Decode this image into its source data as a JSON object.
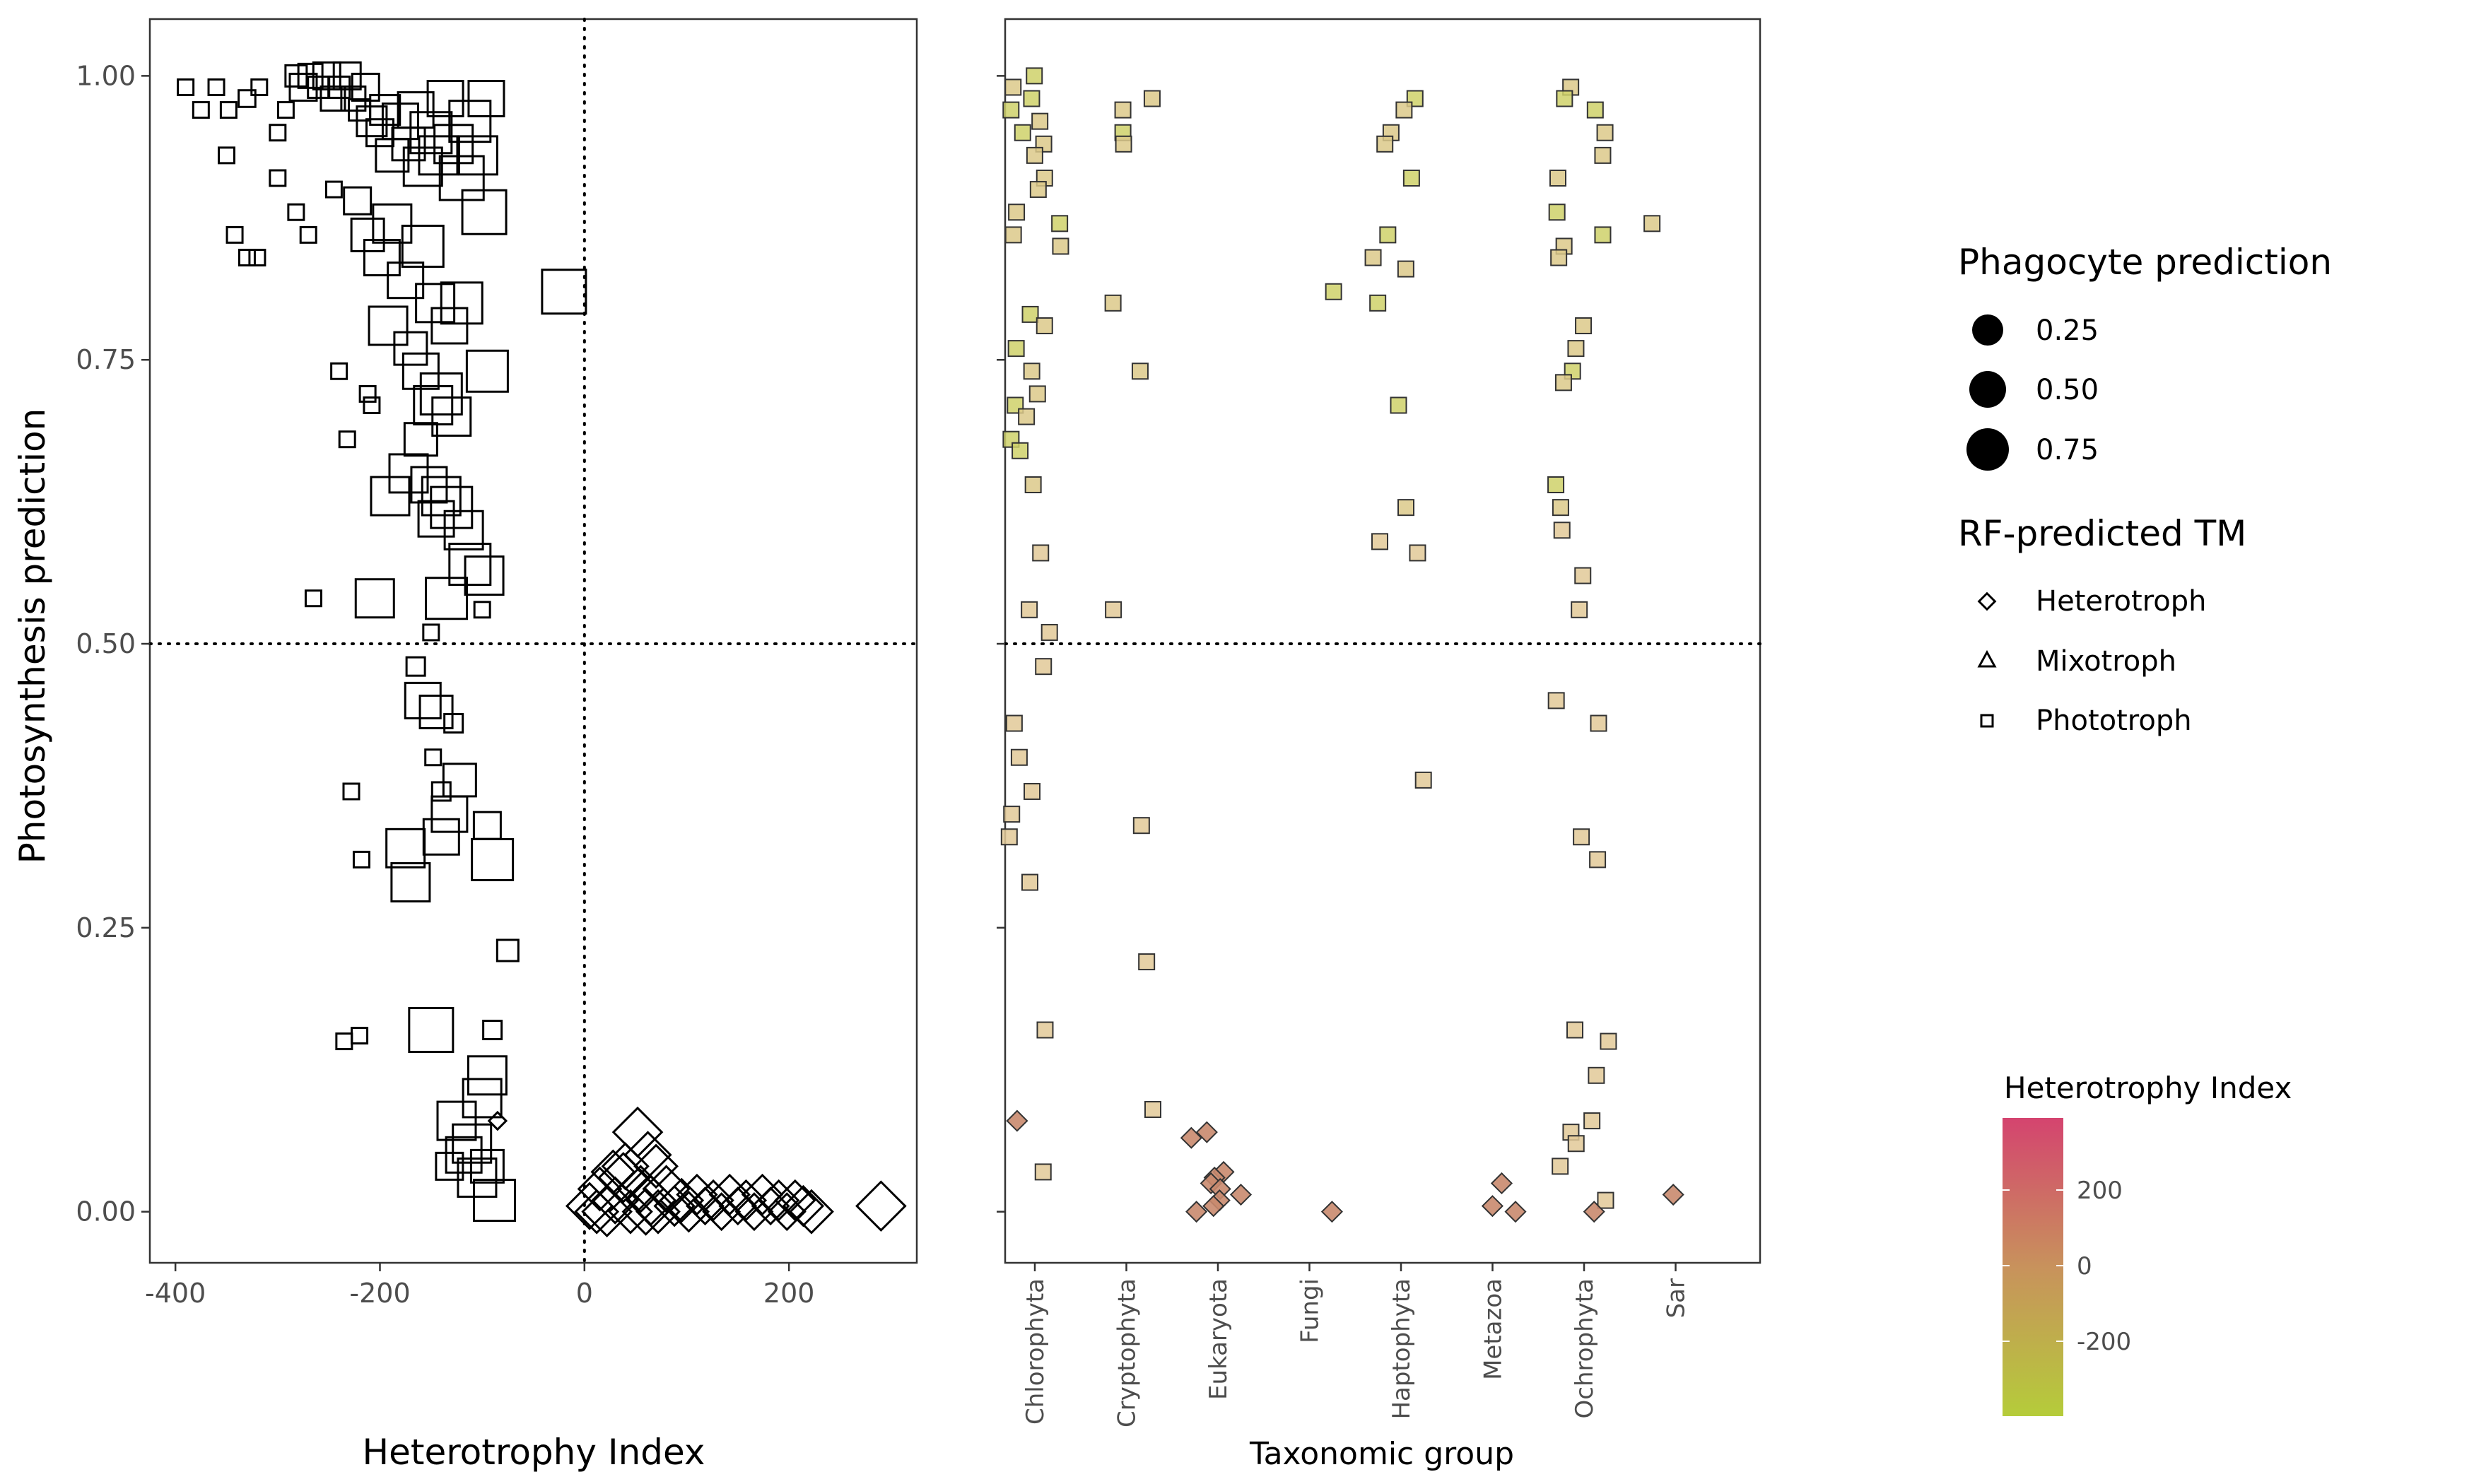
{
  "chart_data": [
    {
      "type": "scatter",
      "xlabel": "Heterotrophy Index",
      "ylabel": "Photosynthesis prediction",
      "xlim": [
        -425,
        325
      ],
      "ylim": [
        -0.045,
        1.05
      ],
      "xticks": [
        -400,
        -200,
        0,
        200
      ],
      "yticks": [
        0.0,
        0.25,
        0.5,
        0.75,
        1.0
      ],
      "ytick_labels": [
        "0.00",
        "0.25",
        "0.50",
        "0.75",
        "1.00"
      ],
      "reference_lines": {
        "x": 0,
        "y": 0.5,
        "style": "dotted"
      },
      "grid": false,
      "phototroph_points": [
        [
          -390,
          0.99,
          0.1
        ],
        [
          -375,
          0.97,
          0.1
        ],
        [
          -360,
          0.99,
          0.1
        ],
        [
          -348,
          0.97,
          0.1
        ],
        [
          -330,
          0.98,
          0.12
        ],
        [
          -318,
          0.99,
          0.1
        ],
        [
          -300,
          0.95,
          0.1
        ],
        [
          -292,
          0.97,
          0.1
        ],
        [
          -282,
          1.0,
          0.2
        ],
        [
          -275,
          0.99,
          0.3
        ],
        [
          -268,
          1.0,
          0.25
        ],
        [
          -260,
          0.99,
          0.2
        ],
        [
          -252,
          1.0,
          0.3
        ],
        [
          -246,
          0.98,
          0.25
        ],
        [
          -240,
          0.99,
          0.2
        ],
        [
          -232,
          1.0,
          0.3
        ],
        [
          -226,
          0.98,
          0.25
        ],
        [
          -220,
          0.97,
          0.2
        ],
        [
          -214,
          0.99,
          0.3
        ],
        [
          -208,
          0.96,
          0.35
        ],
        [
          -200,
          0.95,
          0.3
        ],
        [
          -195,
          0.97,
          0.35
        ],
        [
          -188,
          0.93,
          0.4
        ],
        [
          -180,
          0.96,
          0.45
        ],
        [
          -172,
          0.94,
          0.4
        ],
        [
          -165,
          0.97,
          0.45
        ],
        [
          -158,
          0.92,
          0.5
        ],
        [
          -150,
          0.95,
          0.55
        ],
        [
          -143,
          0.93,
          0.5
        ],
        [
          -136,
          0.98,
          0.45
        ],
        [
          -128,
          0.94,
          0.5
        ],
        [
          -120,
          0.91,
          0.6
        ],
        [
          -112,
          0.96,
          0.55
        ],
        [
          -104,
          0.93,
          0.5
        ],
        [
          -96,
          0.98,
          0.45
        ],
        [
          -350,
          0.93,
          0.1
        ],
        [
          -342,
          0.86,
          0.1
        ],
        [
          -330,
          0.84,
          0.1
        ],
        [
          -320,
          0.84,
          0.1
        ],
        [
          -300,
          0.91,
          0.1
        ],
        [
          -282,
          0.88,
          0.1
        ],
        [
          -270,
          0.86,
          0.1
        ],
        [
          -245,
          0.9,
          0.1
        ],
        [
          -222,
          0.89,
          0.3
        ],
        [
          -212,
          0.86,
          0.4
        ],
        [
          -198,
          0.84,
          0.45
        ],
        [
          -188,
          0.87,
          0.5
        ],
        [
          -175,
          0.82,
          0.45
        ],
        [
          -158,
          0.85,
          0.55
        ],
        [
          -146,
          0.8,
          0.5
        ],
        [
          -132,
          0.78,
          0.45
        ],
        [
          -120,
          0.8,
          0.55
        ],
        [
          -98,
          0.88,
          0.6
        ],
        [
          -20,
          0.81,
          0.6
        ],
        [
          -192,
          0.78,
          0.5
        ],
        [
          -170,
          0.76,
          0.4
        ],
        [
          -160,
          0.74,
          0.45
        ],
        [
          -148,
          0.71,
          0.5
        ],
        [
          -140,
          0.72,
          0.55
        ],
        [
          -130,
          0.7,
          0.5
        ],
        [
          -95,
          0.74,
          0.55
        ],
        [
          -240,
          0.74,
          0.1
        ],
        [
          -212,
          0.72,
          0.1
        ],
        [
          -208,
          0.71,
          0.1
        ],
        [
          -232,
          0.68,
          0.1
        ],
        [
          -160,
          0.68,
          0.4
        ],
        [
          -172,
          0.65,
          0.5
        ],
        [
          -152,
          0.64,
          0.45
        ],
        [
          -140,
          0.63,
          0.5
        ],
        [
          -130,
          0.62,
          0.55
        ],
        [
          -190,
          0.63,
          0.5
        ],
        [
          -145,
          0.61,
          0.45
        ],
        [
          -118,
          0.6,
          0.5
        ],
        [
          -112,
          0.57,
          0.55
        ],
        [
          -98,
          0.56,
          0.5
        ],
        [
          -205,
          0.54,
          0.5
        ],
        [
          -135,
          0.54,
          0.55
        ],
        [
          -100,
          0.53,
          0.1
        ],
        [
          -265,
          0.54,
          0.1
        ],
        [
          -150,
          0.51,
          0.1
        ],
        [
          -165,
          0.48,
          0.15
        ],
        [
          -158,
          0.45,
          0.45
        ],
        [
          -145,
          0.44,
          0.4
        ],
        [
          -128,
          0.43,
          0.15
        ],
        [
          -148,
          0.4,
          0.1
        ],
        [
          -140,
          0.37,
          0.15
        ],
        [
          -122,
          0.38,
          0.4
        ],
        [
          -132,
          0.35,
          0.45
        ],
        [
          -228,
          0.37,
          0.1
        ],
        [
          -218,
          0.31,
          0.1
        ],
        [
          -175,
          0.32,
          0.5
        ],
        [
          -140,
          0.33,
          0.45
        ],
        [
          -95,
          0.34,
          0.3
        ],
        [
          -90,
          0.31,
          0.55
        ],
        [
          -170,
          0.29,
          0.5
        ],
        [
          -75,
          0.23,
          0.2
        ],
        [
          -150,
          0.16,
          0.6
        ],
        [
          -90,
          0.16,
          0.15
        ],
        [
          -235,
          0.15,
          0.1
        ],
        [
          -220,
          0.155,
          0.1
        ],
        [
          -95,
          0.12,
          0.5
        ],
        [
          -100,
          0.1,
          0.5
        ],
        [
          -125,
          0.08,
          0.5
        ],
        [
          -110,
          0.06,
          0.5
        ],
        [
          -132,
          0.04,
          0.3
        ],
        [
          -118,
          0.05,
          0.45
        ],
        [
          -105,
          0.03,
          0.5
        ],
        [
          -95,
          0.04,
          0.4
        ],
        [
          -88,
          0.01,
          0.55
        ]
      ],
      "heterotroph_points": [
        [
          -85,
          0.08,
          0.1
        ],
        [
          52,
          0.07,
          0.6
        ],
        [
          62,
          0.05,
          0.55
        ],
        [
          5,
          0.005,
          0.55
        ],
        [
          15,
          0.02,
          0.5
        ],
        [
          22,
          0.0,
          0.6
        ],
        [
          30,
          0.01,
          0.55
        ],
        [
          38,
          0.03,
          0.6
        ],
        [
          45,
          0.0,
          0.5
        ],
        [
          55,
          0.02,
          0.55
        ],
        [
          65,
          0.01,
          0.6
        ],
        [
          72,
          0.0,
          0.5
        ],
        [
          80,
          0.02,
          0.55
        ],
        [
          88,
          0.005,
          0.45
        ],
        [
          95,
          0.01,
          0.5
        ],
        [
          102,
          0.0,
          0.45
        ],
        [
          110,
          0.015,
          0.45
        ],
        [
          118,
          0.005,
          0.4
        ],
        [
          126,
          0.01,
          0.45
        ],
        [
          134,
          0.0,
          0.4
        ],
        [
          142,
          0.015,
          0.45
        ],
        [
          150,
          0.005,
          0.4
        ],
        [
          158,
          0.01,
          0.45
        ],
        [
          166,
          0.0,
          0.4
        ],
        [
          174,
          0.015,
          0.45
        ],
        [
          182,
          0.005,
          0.4
        ],
        [
          190,
          0.01,
          0.45
        ],
        [
          198,
          0.0,
          0.4
        ],
        [
          206,
          0.01,
          0.45
        ],
        [
          214,
          0.005,
          0.45
        ],
        [
          222,
          0.0,
          0.5
        ],
        [
          290,
          0.005,
          0.6
        ],
        [
          40,
          0.04,
          0.55
        ],
        [
          28,
          0.035,
          0.5
        ],
        [
          70,
          0.04,
          0.5
        ],
        [
          12,
          0.0,
          0.5
        ],
        [
          60,
          0.0,
          0.55
        ]
      ]
    },
    {
      "type": "scatter",
      "xlabel": "Taxonomic group",
      "ylabel": "Photosynthesis prediction",
      "categories": [
        "Chlorophyta",
        "Cryptophyta",
        "Eukaryota",
        "Fungi",
        "Haptophyta",
        "Metazoa",
        "Ochrophyta",
        "Sar"
      ],
      "ylim": [
        -0.045,
        1.05
      ],
      "reference_lines": {
        "y": 0.5,
        "style": "dotted"
      },
      "color_scale": {
        "low": "#b5cc3a",
        "mid": "#c8925c",
        "high": "#d4446f"
      },
      "phototroph_points": [
        [
          0,
          1.0
        ],
        [
          0,
          0.99
        ],
        [
          0,
          0.98
        ],
        [
          0,
          0.97
        ],
        [
          0,
          0.96
        ],
        [
          0,
          0.95
        ],
        [
          0,
          0.94
        ],
        [
          0,
          0.93
        ],
        [
          0,
          0.91
        ],
        [
          0,
          0.9
        ],
        [
          0,
          0.88
        ],
        [
          0,
          0.87
        ],
        [
          0,
          0.86
        ],
        [
          0,
          0.85
        ],
        [
          0,
          0.79
        ],
        [
          0,
          0.78
        ],
        [
          0,
          0.76
        ],
        [
          0,
          0.74
        ],
        [
          0,
          0.72
        ],
        [
          0,
          0.71
        ],
        [
          0,
          0.7
        ],
        [
          0,
          0.68
        ],
        [
          0,
          0.67
        ],
        [
          0,
          0.64
        ],
        [
          0,
          0.58
        ],
        [
          0,
          0.53
        ],
        [
          0,
          0.51
        ],
        [
          0,
          0.48
        ],
        [
          0,
          0.43
        ],
        [
          0,
          0.4
        ],
        [
          0,
          0.37
        ],
        [
          0,
          0.35
        ],
        [
          0,
          0.33
        ],
        [
          0,
          0.29
        ],
        [
          0,
          0.16
        ],
        [
          0,
          0.035
        ],
        [
          1,
          0.98
        ],
        [
          1,
          0.97
        ],
        [
          1,
          0.95
        ],
        [
          1,
          0.94
        ],
        [
          1,
          0.8
        ],
        [
          1,
          0.74
        ],
        [
          1,
          0.53
        ],
        [
          1,
          0.34
        ],
        [
          1,
          0.22
        ],
        [
          1,
          0.09
        ],
        [
          3,
          0.81
        ],
        [
          4,
          0.98
        ],
        [
          4,
          0.97
        ],
        [
          4,
          0.95
        ],
        [
          4,
          0.94
        ],
        [
          4,
          0.91
        ],
        [
          4,
          0.86
        ],
        [
          4,
          0.84
        ],
        [
          4,
          0.83
        ],
        [
          4,
          0.8
        ],
        [
          4,
          0.71
        ],
        [
          4,
          0.62
        ],
        [
          4,
          0.59
        ],
        [
          4,
          0.58
        ],
        [
          4,
          0.38
        ],
        [
          6,
          0.99
        ],
        [
          6,
          0.98
        ],
        [
          6,
          0.97
        ],
        [
          6,
          0.95
        ],
        [
          6,
          0.93
        ],
        [
          6,
          0.91
        ],
        [
          6,
          0.88
        ],
        [
          6,
          0.86
        ],
        [
          6,
          0.85
        ],
        [
          6,
          0.84
        ],
        [
          6,
          0.78
        ],
        [
          6,
          0.76
        ],
        [
          6,
          0.74
        ],
        [
          6,
          0.73
        ],
        [
          6,
          0.64
        ],
        [
          6,
          0.62
        ],
        [
          6,
          0.6
        ],
        [
          6,
          0.56
        ],
        [
          6,
          0.53
        ],
        [
          6,
          0.45
        ],
        [
          6,
          0.43
        ],
        [
          6,
          0.33
        ],
        [
          6,
          0.31
        ],
        [
          6,
          0.16
        ],
        [
          6,
          0.15
        ],
        [
          6,
          0.12
        ],
        [
          6,
          0.08
        ],
        [
          6,
          0.07
        ],
        [
          6,
          0.06
        ],
        [
          6,
          0.04
        ],
        [
          6,
          0.01
        ],
        [
          7,
          0.87
        ]
      ],
      "heterotroph_points": [
        [
          0,
          0.08
        ],
        [
          2,
          0.07
        ],
        [
          2,
          0.065
        ],
        [
          2,
          0.035
        ],
        [
          2,
          0.03
        ],
        [
          2,
          0.025
        ],
        [
          2,
          0.02
        ],
        [
          2,
          0.015
        ],
        [
          2,
          0.01
        ],
        [
          2,
          0.005
        ],
        [
          2,
          0.0
        ],
        [
          3,
          0.0
        ],
        [
          5,
          0.025
        ],
        [
          5,
          0.005
        ],
        [
          5,
          0.0
        ],
        [
          6,
          0.0
        ],
        [
          7,
          0.015
        ]
      ]
    }
  ],
  "legend": {
    "size_title": "Phagocyte prediction",
    "size_items": [
      "0.25",
      "0.50",
      "0.75"
    ],
    "shape_title": "RF-predicted TM",
    "shape_items": [
      "Heterotroph",
      "Mixotroph",
      "Phototroph"
    ],
    "color_title": "Heterotrophy Index",
    "color_ticks": [
      "200",
      "0",
      "-200"
    ]
  }
}
